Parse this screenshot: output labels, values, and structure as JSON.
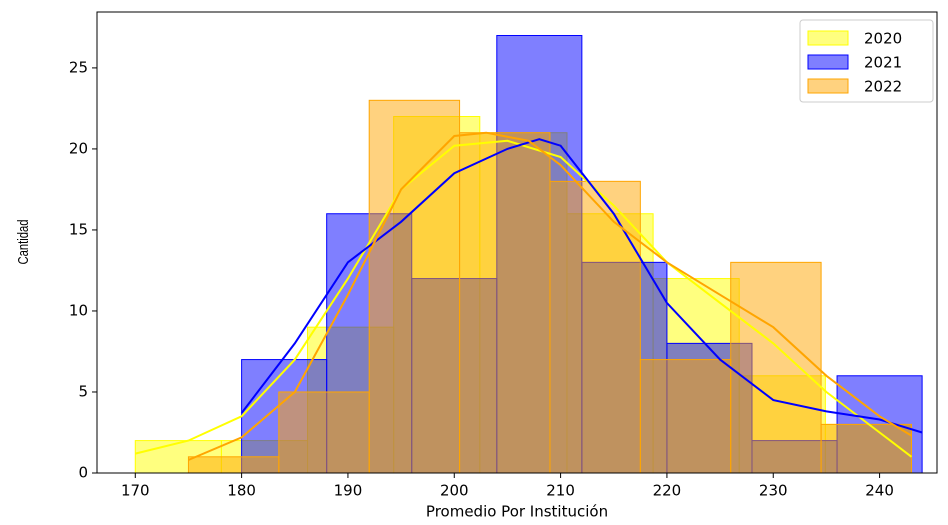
{
  "chart_data": {
    "type": "histogram",
    "xlabel": "Promedio Por Institución",
    "ylabel": "Cantidad",
    "xlim": [
      166.4,
      245.4
    ],
    "ylim": [
      0,
      28.45
    ],
    "xticks": [
      170,
      180,
      190,
      200,
      210,
      220,
      230,
      240
    ],
    "yticks": [
      0,
      5,
      10,
      15,
      20,
      25
    ],
    "grid": false,
    "legend": "upper right",
    "series": [
      {
        "name": "2020",
        "color": "#ffff00",
        "bins": [
          170,
          178.1,
          186.2,
          194.3,
          202.4,
          210.6,
          218.7,
          226.8,
          234.9,
          243
        ],
        "values": [
          2,
          2,
          9,
          22,
          21,
          16,
          12,
          6,
          3
        ],
        "kde_x": [
          170,
          175,
          180,
          185,
          190,
          195,
          200,
          205,
          210,
          215,
          220,
          225,
          230,
          235,
          240,
          243
        ],
        "kde_y": [
          1.2,
          2,
          3.5,
          7,
          12,
          17.5,
          20.2,
          20.5,
          19.5,
          16.5,
          13,
          10.5,
          8,
          5,
          2.5,
          1
        ]
      },
      {
        "name": "2021",
        "color": "#0000ff",
        "bins": [
          180,
          188,
          196,
          204,
          212,
          220,
          228,
          236,
          244
        ],
        "values": [
          7,
          16,
          12,
          27,
          13,
          8,
          2,
          6
        ],
        "kde_x": [
          180,
          185,
          190,
          195,
          200,
          205,
          208,
          210,
          215,
          220,
          225,
          230,
          235,
          240,
          244
        ],
        "kde_y": [
          3.7,
          8,
          13,
          15.5,
          18.5,
          20,
          20.6,
          20.2,
          16,
          10.5,
          7,
          4.5,
          3.8,
          3.3,
          2.5
        ]
      },
      {
        "name": "2022",
        "color": "#ffa500",
        "bins": [
          175,
          183.5,
          192,
          200.5,
          209,
          217.5,
          226,
          234.5,
          243
        ],
        "values": [
          1,
          5,
          23,
          21,
          18,
          7,
          13,
          3
        ],
        "kde_x": [
          175,
          180,
          185,
          190,
          195,
          200,
          203,
          207,
          210,
          215,
          220,
          225,
          230,
          235,
          240,
          243
        ],
        "kde_y": [
          0.8,
          2.2,
          5,
          11,
          17.5,
          20.8,
          21,
          20.5,
          19,
          15.5,
          13,
          11,
          9,
          6,
          3.5,
          2.3
        ]
      }
    ]
  }
}
